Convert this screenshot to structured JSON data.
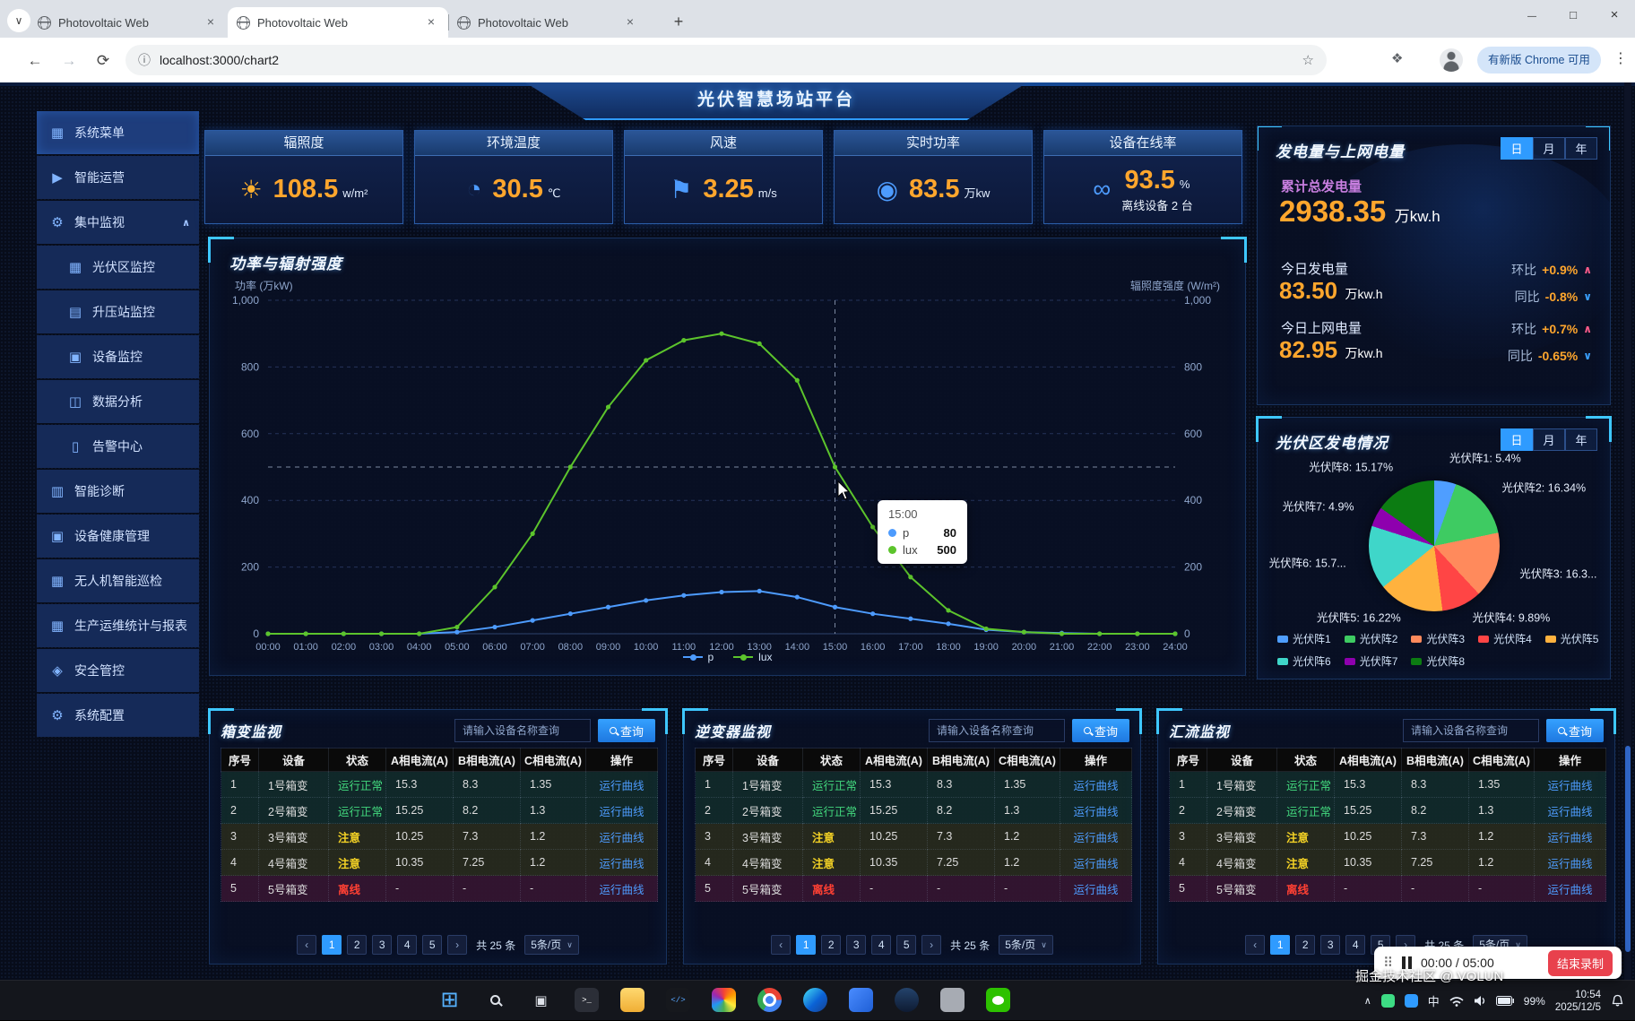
{
  "browser": {
    "tabs": [
      {
        "title": "Photovoltaic Web"
      },
      {
        "title": "Photovoltaic Web"
      },
      {
        "title": "Photovoltaic Web"
      }
    ],
    "active_tab": 1,
    "url": "localhost:3000/chart2",
    "update_button": "有新版 Chrome 可用"
  },
  "header": {
    "title": "光伏智慧场站平台"
  },
  "sidebar": {
    "items": [
      {
        "id": "system-menu",
        "label": "系统菜单",
        "glyph": "▦",
        "icon": "grid-icon",
        "active": true
      },
      {
        "id": "smart-operation",
        "label": "智能运营",
        "glyph": "▶",
        "icon": "play-circle-icon"
      },
      {
        "id": "central-monitor",
        "label": "集中监视",
        "glyph": "⚙",
        "icon": "gear-icon",
        "expanded": true
      },
      {
        "id": "pv-area-monitor",
        "label": "光伏区监控",
        "glyph": "▦",
        "icon": "grid-icon",
        "indent": true
      },
      {
        "id": "booster-station-monitor",
        "label": "升压站监控",
        "glyph": "▤",
        "icon": "building-icon",
        "indent": true
      },
      {
        "id": "device-monitor",
        "label": "设备监控",
        "glyph": "▣",
        "icon": "package-icon",
        "indent": true
      },
      {
        "id": "data-analysis",
        "label": "数据分析",
        "glyph": "◫",
        "icon": "presentation-icon",
        "indent": true
      },
      {
        "id": "alarm-center",
        "label": "告警中心",
        "glyph": "▯",
        "icon": "document-icon",
        "indent": true
      },
      {
        "id": "smart-diagnosis",
        "label": "智能诊断",
        "glyph": "▥",
        "icon": "bar-chart-icon"
      },
      {
        "id": "device-health",
        "label": "设备健康管理",
        "glyph": "▣",
        "icon": "package-icon"
      },
      {
        "id": "drone-inspection",
        "label": "无人机智能巡检",
        "glyph": "▦",
        "icon": "grid-icon"
      },
      {
        "id": "production-report",
        "label": "生产运维统计与报表",
        "glyph": "▦",
        "icon": "grid-icon"
      },
      {
        "id": "security-control",
        "label": "安全管控",
        "glyph": "◈",
        "icon": "lock-icon"
      },
      {
        "id": "system-config",
        "label": "系统配置",
        "glyph": "⚙",
        "icon": "gear-icon"
      }
    ]
  },
  "stat_cards": [
    {
      "id": "irradiance",
      "title": "辐照度",
      "value": "108.5",
      "unit": "w/m²",
      "icon": "sun-icon",
      "glyph": "☀",
      "icon_color": "#ffb02e"
    },
    {
      "id": "ambient-temperature",
      "title": "环境温度",
      "value": "30.5",
      "unit": "℃",
      "icon": "thermometer-icon",
      "glyph": "◔",
      "icon_color": "#4d9bfd"
    },
    {
      "id": "wind-speed",
      "title": "风速",
      "value": "3.25",
      "unit": "m/s",
      "icon": "wind-flag-icon",
      "glyph": "⚑",
      "icon_color": "#4d9bfd"
    },
    {
      "id": "realtime-power",
      "title": "实时功率",
      "value": "83.5",
      "unit": "万kw",
      "icon": "gauge-icon",
      "glyph": "◉",
      "icon_color": "#4d9bfd"
    },
    {
      "id": "device-online-rate",
      "title": "设备在线率",
      "value": "93.5",
      "unit": "%",
      "icon": "link-icon",
      "glyph": "∞",
      "icon_color": "#4d9bfd",
      "extra": "离线设备 2 台"
    }
  ],
  "power_chart": {
    "title": "功率与辐射强度",
    "y_left_label": "功率 (万kW)",
    "y_right_label": "辐照度强度 (W/m²)",
    "tooltip": {
      "time": "15:00",
      "rows": [
        {
          "name": "p",
          "value": "80"
        },
        {
          "name": "lux",
          "value": "500"
        }
      ]
    }
  },
  "chart_data": [
    {
      "type": "line",
      "title": "功率与辐射强度",
      "x": [
        "00:00",
        "01:00",
        "02:00",
        "03:00",
        "04:00",
        "05:00",
        "06:00",
        "07:00",
        "08:00",
        "09:00",
        "10:00",
        "11:00",
        "12:00",
        "13:00",
        "14:00",
        "15:00",
        "16:00",
        "17:00",
        "18:00",
        "19:00",
        "20:00",
        "21:00",
        "22:00",
        "23:00",
        "24:00"
      ],
      "series": [
        {
          "name": "p",
          "color": "#4d9bfd",
          "values": [
            0,
            0,
            0,
            0,
            0,
            5,
            20,
            40,
            60,
            80,
            100,
            115,
            125,
            128,
            110,
            80,
            60,
            45,
            30,
            12,
            5,
            2,
            0,
            0,
            0
          ]
        },
        {
          "name": "lux",
          "color": "#5cc42c",
          "values": [
            0,
            0,
            0,
            0,
            0,
            20,
            140,
            300,
            500,
            680,
            820,
            880,
            900,
            870,
            760,
            500,
            320,
            170,
            70,
            15,
            5,
            0,
            0,
            0,
            0
          ]
        }
      ],
      "ylim": [
        0,
        1000
      ],
      "y_ticks": [
        "1,000",
        "800",
        "600",
        "400",
        "200",
        "0"
      ],
      "xlabel": "",
      "ylabel": "功率 (万kW)",
      "ylabel_right": "辐照度强度 (W/m²)",
      "legend_position": "bottom",
      "grid": "dashed-horizontal"
    },
    {
      "type": "pie",
      "title": "光伏区发电情况",
      "slices": [
        {
          "name": "光伏阵1",
          "value": 5.4,
          "label": "光伏阵1: 5.4%",
          "color": "#4f9eff"
        },
        {
          "name": "光伏阵2",
          "value": 16.34,
          "label": "光伏阵2: 16.34%",
          "color": "#3ecb62"
        },
        {
          "name": "光伏阵3",
          "value": 16.3,
          "label": "光伏阵3: 16.3...",
          "color": "#ff8a5c"
        },
        {
          "name": "光伏阵4",
          "value": 9.89,
          "label": "光伏阵4: 9.89%",
          "color": "#ff4545"
        },
        {
          "name": "光伏阵5",
          "value": 16.22,
          "label": "光伏阵5: 16.22%",
          "color": "#ffb23e"
        },
        {
          "name": "光伏阵6",
          "value": 15.7,
          "label": "光伏阵6: 15.7...",
          "color": "#3fd6c9"
        },
        {
          "name": "光伏阵7",
          "value": 4.9,
          "label": "光伏阵7: 4.9%",
          "color": "#8e00ae"
        },
        {
          "name": "光伏阵8",
          "value": 15.17,
          "label": "光伏阵8: 15.17%",
          "color": "#0c7c12"
        }
      ]
    }
  ],
  "energy_panel": {
    "title": "发电量与上网电量",
    "tabs": [
      "日",
      "月",
      "年"
    ],
    "active_tab": "日",
    "total_label": "累计总发电量",
    "total_value": "2938.35",
    "total_unit": "万kw.h",
    "rows": [
      {
        "label": "今日发电量",
        "value": "83.50",
        "unit": "万kw.h",
        "hb_label": "环比",
        "hb_value": "+0.9%",
        "tb_label": "同比",
        "tb_value": "-0.8%"
      },
      {
        "label": "今日上网电量",
        "value": "82.95",
        "unit": "万kw.h",
        "hb_label": "环比",
        "hb_value": "+0.7%",
        "tb_label": "同比",
        "tb_value": "-0.65%"
      }
    ]
  },
  "pv_panel": {
    "title": "光伏区发电情况",
    "tabs": [
      "日",
      "月",
      "年"
    ],
    "active_tab": "日"
  },
  "tables": [
    {
      "title": "箱变监视",
      "search_placeholder": "请输入设备名称查询",
      "search_button": "查询",
      "headers": [
        "序号",
        "设备",
        "状态",
        "A相电流(A)",
        "B相电流(A)",
        "C相电流(A)",
        "操作"
      ],
      "rows": [
        {
          "no": "1",
          "device": "1号箱变",
          "status": "运行正常",
          "a": "15.3",
          "b": "8.3",
          "c": "1.35",
          "action": "运行曲线"
        },
        {
          "no": "2",
          "device": "2号箱变",
          "status": "运行正常",
          "a": "15.25",
          "b": "8.2",
          "c": "1.3",
          "action": "运行曲线"
        },
        {
          "no": "3",
          "device": "3号箱变",
          "status": "注意",
          "a": "10.25",
          "b": "7.3",
          "c": "1.2",
          "action": "运行曲线"
        },
        {
          "no": "4",
          "device": "4号箱变",
          "status": "注意",
          "a": "10.35",
          "b": "7.25",
          "c": "1.2",
          "action": "运行曲线"
        },
        {
          "no": "5",
          "device": "5号箱变",
          "status": "离线",
          "a": "-",
          "b": "-",
          "c": "-",
          "action": "运行曲线"
        }
      ],
      "pagination": {
        "prev": "‹",
        "pages": [
          "1",
          "2",
          "3",
          "4",
          "5"
        ],
        "active": "1",
        "next": "›",
        "total": "共 25 条",
        "page_size": "5条/页"
      }
    },
    {
      "title": "逆变器监视",
      "search_placeholder": "请输入设备名称查询",
      "search_button": "查询",
      "headers": [
        "序号",
        "设备",
        "状态",
        "A相电流(A)",
        "B相电流(A)",
        "C相电流(A)",
        "操作"
      ],
      "rows": [
        {
          "no": "1",
          "device": "1号箱变",
          "status": "运行正常",
          "a": "15.3",
          "b": "8.3",
          "c": "1.35",
          "action": "运行曲线"
        },
        {
          "no": "2",
          "device": "2号箱变",
          "status": "运行正常",
          "a": "15.25",
          "b": "8.2",
          "c": "1.3",
          "action": "运行曲线"
        },
        {
          "no": "3",
          "device": "3号箱变",
          "status": "注意",
          "a": "10.25",
          "b": "7.3",
          "c": "1.2",
          "action": "运行曲线"
        },
        {
          "no": "4",
          "device": "4号箱变",
          "status": "注意",
          "a": "10.35",
          "b": "7.25",
          "c": "1.2",
          "action": "运行曲线"
        },
        {
          "no": "5",
          "device": "5号箱变",
          "status": "离线",
          "a": "-",
          "b": "-",
          "c": "-",
          "action": "运行曲线"
        }
      ],
      "pagination": {
        "prev": "‹",
        "pages": [
          "1",
          "2",
          "3",
          "4",
          "5"
        ],
        "active": "1",
        "next": "›",
        "total": "共 25 条",
        "page_size": "5条/页"
      }
    },
    {
      "title": "汇流监视",
      "search_placeholder": "请输入设备名称查询",
      "search_button": "查询",
      "headers": [
        "序号",
        "设备",
        "状态",
        "A相电流(A)",
        "B相电流(A)",
        "C相电流(A)",
        "操作"
      ],
      "rows": [
        {
          "no": "1",
          "device": "1号箱变",
          "status": "运行正常",
          "a": "15.3",
          "b": "8.3",
          "c": "1.35",
          "action": "运行曲线"
        },
        {
          "no": "2",
          "device": "2号箱变",
          "status": "运行正常",
          "a": "15.25",
          "b": "8.2",
          "c": "1.3",
          "action": "运行曲线"
        },
        {
          "no": "3",
          "device": "3号箱变",
          "status": "注意",
          "a": "10.25",
          "b": "7.3",
          "c": "1.2",
          "action": "运行曲线"
        },
        {
          "no": "4",
          "device": "4号箱变",
          "status": "注意",
          "a": "10.35",
          "b": "7.25",
          "c": "1.2",
          "action": "运行曲线"
        },
        {
          "no": "5",
          "device": "5号箱变",
          "status": "离线",
          "a": "-",
          "b": "-",
          "c": "-",
          "action": "运行曲线"
        }
      ],
      "pagination": {
        "prev": "‹",
        "pages": [
          "1",
          "2",
          "3",
          "4",
          "5"
        ],
        "active": "1",
        "next": "›",
        "total": "共 25 条",
        "page_size": "5条/页"
      }
    }
  ],
  "taskbar": {
    "icons": [
      {
        "name": "start"
      },
      {
        "name": "search"
      },
      {
        "name": "task-view"
      },
      {
        "name": "terminal"
      },
      {
        "name": "explorer"
      },
      {
        "name": "vscode"
      },
      {
        "name": "photos"
      },
      {
        "name": "chrome"
      },
      {
        "name": "edge"
      },
      {
        "name": "app-blue"
      },
      {
        "name": "steam"
      },
      {
        "name": "app-gray"
      },
      {
        "name": "wechat"
      }
    ],
    "tray": {
      "ime": "中",
      "battery": "99%",
      "time": "10:54",
      "date": "2025/12/5"
    }
  },
  "recorder": {
    "time": "00:00 / 05:00",
    "stop_label": "结束录制"
  },
  "watermark": "掘金技术社区 @ VOLUN"
}
